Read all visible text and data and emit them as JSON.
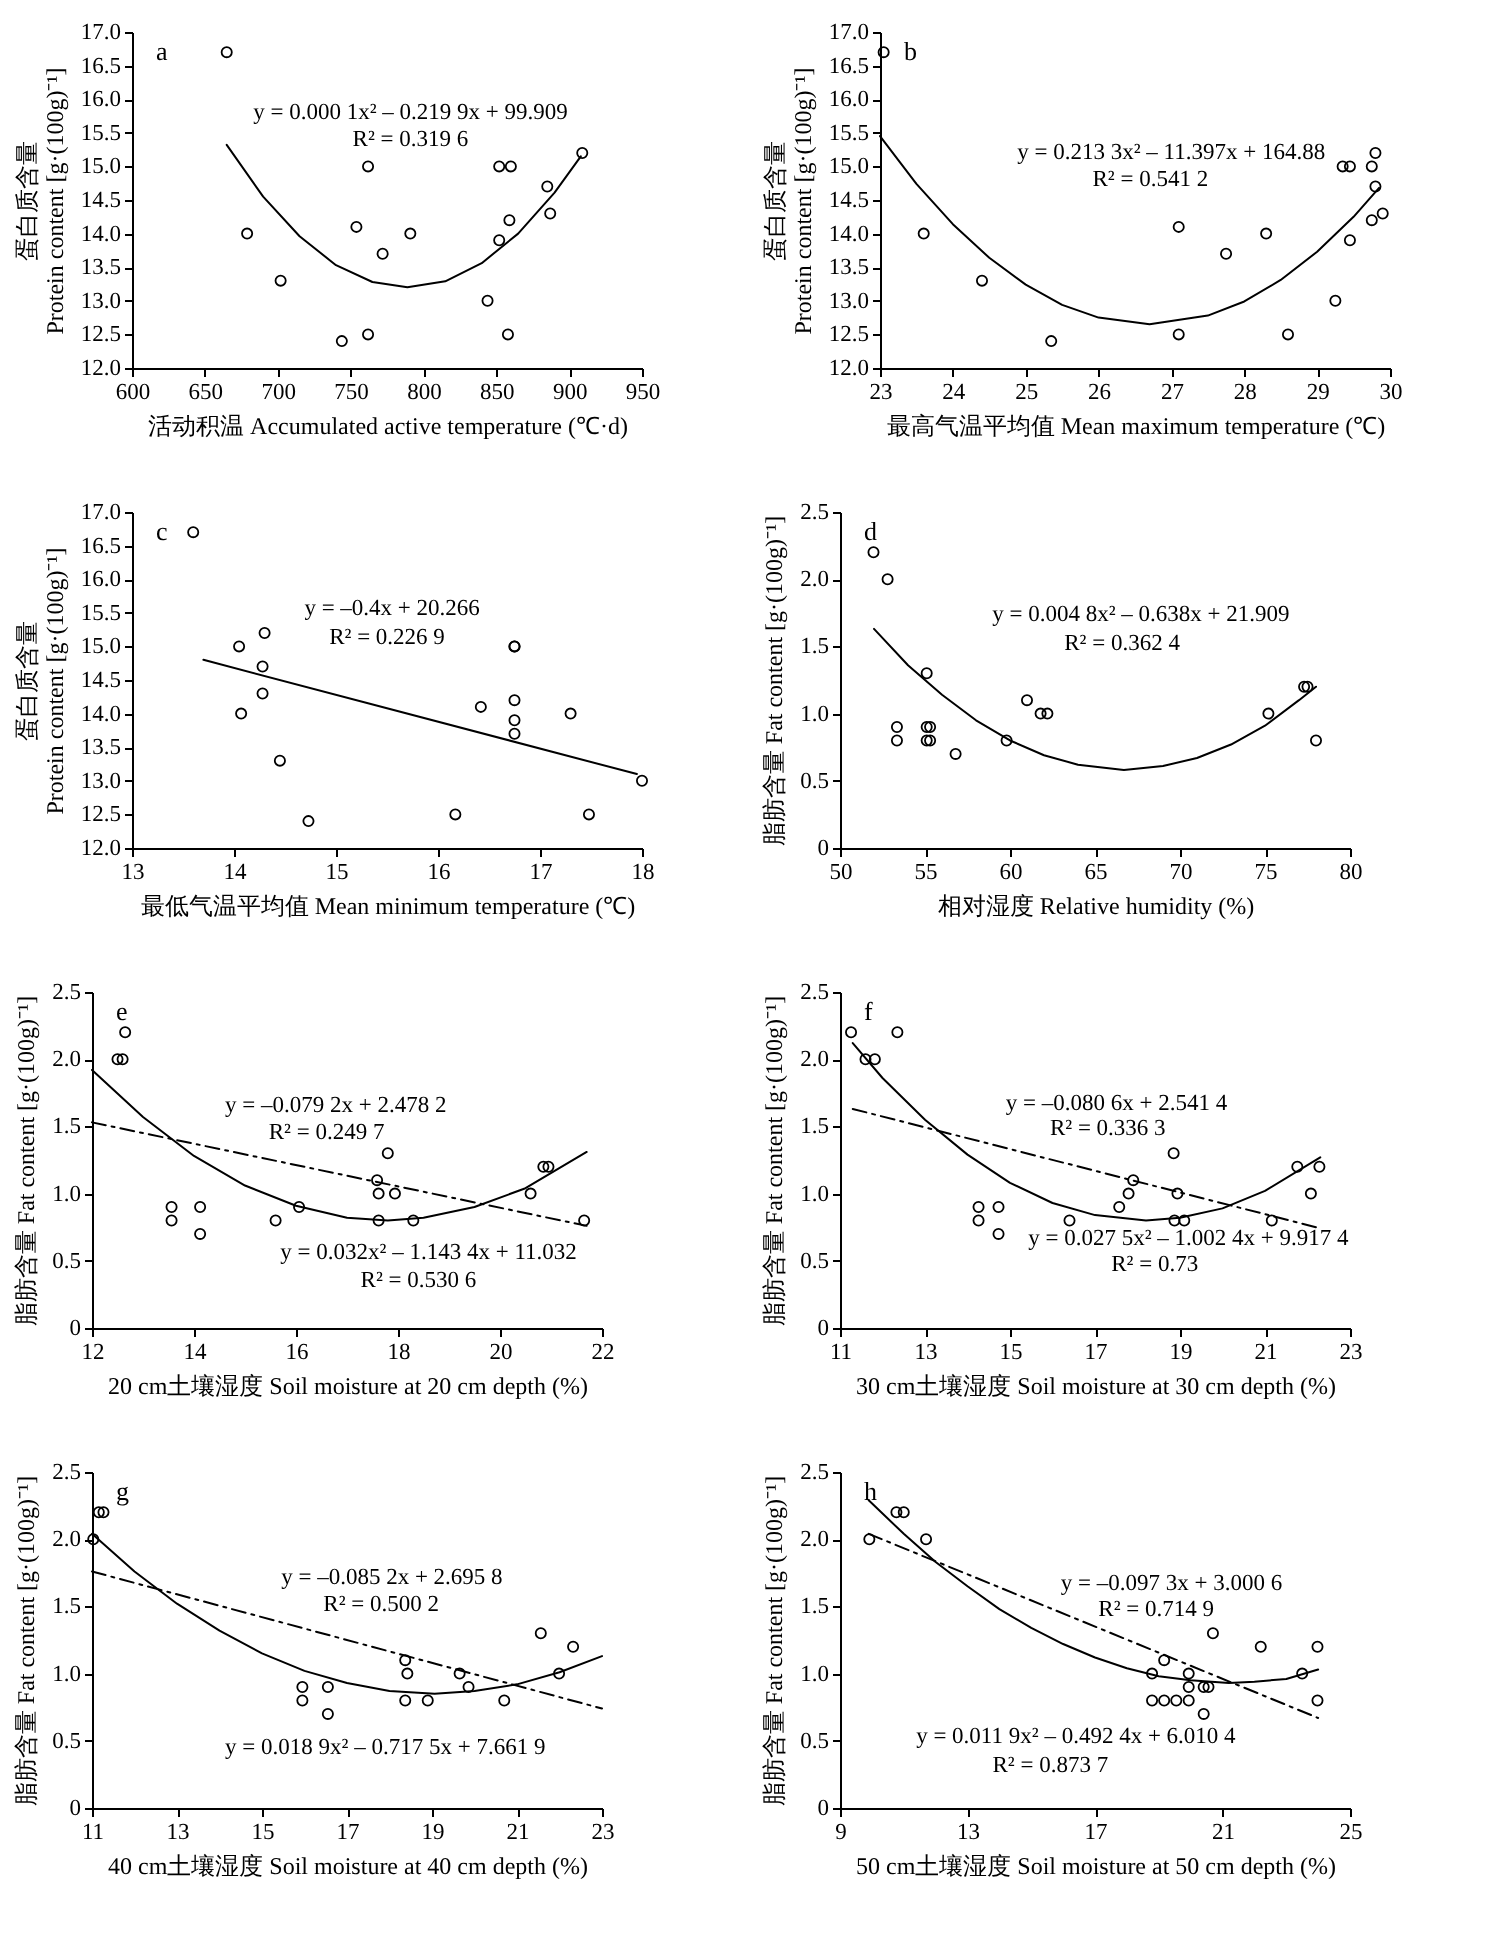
{
  "chart_data": [
    {
      "type": "scatter",
      "xlabel": "活动积温 Accumulated active temperature (℃·d)",
      "ylabel": "蛋白质含量\nProtein content [g·(100g)⁻¹]",
      "xlim": [
        600,
        950
      ],
      "xticks": [
        600,
        650,
        700,
        750,
        800,
        850,
        900,
        950
      ],
      "ylim": [
        12,
        17
      ],
      "yticks": [
        {
          "value": 12,
          "label": "12.0"
        },
        12.5,
        {
          "value": 13,
          "label": "13.0"
        },
        13.5,
        {
          "value": 14,
          "label": "14.0"
        },
        14.5,
        {
          "value": 15,
          "label": "15.0"
        },
        15.5,
        {
          "value": 16,
          "label": "16.0"
        },
        16.5,
        {
          "value": 17,
          "label": "17.0"
        }
      ],
      "series": [
        {
          "type": "scatter",
          "marker": "circle",
          "color": "#000000",
          "x": [
            665,
            679,
            702,
            744,
            754,
            762,
            762,
            772,
            791,
            844,
            852,
            860,
            852,
            859,
            858,
            885,
            887,
            909
          ],
          "values": [
            16.7,
            14.0,
            13.3,
            12.4,
            14.1,
            15.0,
            12.5,
            13.7,
            14.0,
            13.0,
            15.0,
            15.0,
            13.9,
            14.2,
            12.5,
            14.7,
            14.3,
            15.2
          ]
        },
        {
          "type": "line",
          "color": "#000000",
          "line_style": "solid",
          "x": [
            665,
            690,
            715,
            740,
            765,
            789,
            815,
            840,
            865,
            890,
            908
          ],
          "values": [
            15.32,
            14.55,
            13.96,
            13.53,
            13.28,
            13.2,
            13.29,
            13.56,
            14.0,
            14.61,
            15.15
          ]
        }
      ],
      "annotations": [
        "a",
        "y = 0.000 1x² – 0.219 9x + 99.909",
        "R² = 0.319 6"
      ]
    },
    {
      "type": "scatter",
      "xlabel": "最高气温平均值 Mean maximum temperature (℃)",
      "ylabel": "蛋白质含量\nProtein content [g·(100g)⁻¹]",
      "xlim": [
        23,
        30
      ],
      "xticks": [
        23,
        24,
        25,
        26,
        27,
        28,
        29,
        30
      ],
      "ylim": [
        12,
        17
      ],
      "yticks": [
        {
          "value": 12,
          "label": "12.0"
        },
        12.5,
        {
          "value": 13,
          "label": "13.0"
        },
        13.5,
        {
          "value": 14,
          "label": "14.0"
        },
        14.5,
        {
          "value": 15,
          "label": "15.0"
        },
        15.5,
        {
          "value": 16,
          "label": "16.0"
        },
        16.5,
        {
          "value": 17,
          "label": "17.0"
        }
      ],
      "series": [
        {
          "type": "scatter",
          "marker": "circle",
          "color": "#000000",
          "x": [
            23.05,
            23.6,
            24.4,
            25.35,
            27.1,
            27.1,
            27.75,
            28.3,
            28.6,
            29.25,
            29.35,
            29.45,
            29.45,
            29.75,
            29.8,
            29.8,
            29.75,
            29.9
          ],
          "values": [
            16.7,
            14.0,
            13.3,
            12.4,
            14.1,
            12.5,
            13.7,
            14.0,
            12.5,
            13.0,
            15.0,
            15.0,
            13.9,
            15.0,
            15.2,
            14.7,
            14.2,
            14.3
          ]
        },
        {
          "type": "line",
          "color": "#000000",
          "line_style": "solid",
          "x": [
            23,
            23.5,
            24,
            24.5,
            25,
            25.5,
            26,
            26.7,
            27.5,
            28,
            28.5,
            29,
            29.5,
            29.85
          ],
          "values": [
            15.45,
            14.74,
            14.14,
            13.64,
            13.24,
            12.94,
            12.75,
            12.65,
            12.78,
            12.99,
            13.31,
            13.73,
            14.25,
            14.68
          ]
        }
      ],
      "annotations": [
        "b",
        "y = 0.213 3x² – 11.397x + 164.88",
        "R² = 0.541 2"
      ]
    },
    {
      "type": "scatter",
      "xlabel": "最低气温平均值 Mean minimum temperature (℃)",
      "ylabel": "蛋白质含量\nProtein content [g·(100g)⁻¹]",
      "xlim": [
        13,
        18
      ],
      "xticks": [
        13,
        14,
        15,
        16,
        17,
        18
      ],
      "ylim": [
        12,
        17
      ],
      "yticks": [
        {
          "value": 12,
          "label": "12.0"
        },
        12.5,
        {
          "value": 13,
          "label": "13.0"
        },
        13.5,
        {
          "value": 14,
          "label": "14.0"
        },
        14.5,
        {
          "value": 15,
          "label": "15.0"
        },
        15.5,
        {
          "value": 16,
          "label": "16.0"
        },
        16.5,
        {
          "value": 17,
          "label": "17.0"
        }
      ],
      "series": [
        {
          "type": "scatter",
          "marker": "circle",
          "color": "#000000",
          "x": [
            13.6,
            14.05,
            14.3,
            14.28,
            14.28,
            14.07,
            14.45,
            14.73,
            16.17,
            16.42,
            16.75,
            16.75,
            16.75,
            16.75,
            16.75,
            17.3,
            17.48,
            18.0
          ],
          "values": [
            16.7,
            15.0,
            15.2,
            14.7,
            14.3,
            14.0,
            13.3,
            12.4,
            12.5,
            14.1,
            15.0,
            15.0,
            14.2,
            13.9,
            13.7,
            14.0,
            12.5,
            13.0
          ]
        },
        {
          "type": "line",
          "color": "#000000",
          "line_style": "solid",
          "x": [
            13.7,
            17.95
          ],
          "values": [
            14.8,
            13.1
          ]
        }
      ],
      "annotations": [
        "c",
        "y = –0.4x + 20.266",
        "R² = 0.226 9"
      ]
    },
    {
      "type": "scatter",
      "xlabel": "相对湿度 Relative humidity (%)",
      "ylabel": "脂肪含量 Fat content [g·(100g)⁻¹]",
      "xlim": [
        50,
        80
      ],
      "xticks": [
        50,
        55,
        60,
        65,
        70,
        75,
        80
      ],
      "ylim": [
        0,
        2.5
      ],
      "yticks": [
        0,
        0.5,
        {
          "value": 1,
          "label": "1.0"
        },
        1.5,
        {
          "value": 2,
          "label": "2.0"
        },
        2.5
      ],
      "series": [
        {
          "type": "scatter",
          "marker": "circle",
          "color": "#000000",
          "x": [
            51.97,
            52.8,
            53.35,
            53.35,
            55.1,
            55.1,
            55.3,
            55.1,
            55.3,
            56.8,
            59.8,
            61.0,
            61.8,
            62.2,
            75.2,
            77.3,
            77.5,
            78.0
          ],
          "values": [
            2.2,
            2.0,
            0.9,
            0.8,
            1.3,
            0.9,
            0.9,
            0.8,
            0.8,
            0.7,
            0.8,
            1.1,
            1.0,
            1.0,
            1.0,
            1.2,
            1.2,
            0.8
          ]
        },
        {
          "type": "line",
          "color": "#000000",
          "line_style": "solid",
          "x": [
            52,
            54,
            56,
            58,
            60,
            62,
            64,
            66.7,
            69,
            71,
            73,
            75,
            77,
            78
          ],
          "values": [
            1.63,
            1.36,
            1.14,
            0.95,
            0.8,
            0.69,
            0.62,
            0.58,
            0.61,
            0.67,
            0.77,
            0.91,
            1.1,
            1.2
          ]
        }
      ],
      "annotations": [
        "d",
        "y = 0.004 8x² – 0.638x + 21.909",
        "R² = 0.362 4"
      ]
    },
    {
      "type": "scatter",
      "xlabel": "20 cm土壤湿度 Soil moisture at 20 cm depth (%)",
      "ylabel": "脂肪含量 Fat content [g·(100g)⁻¹]",
      "xlim": [
        12,
        22
      ],
      "xticks": [
        12,
        14,
        16,
        18,
        20,
        22
      ],
      "ylim": [
        0,
        2.5
      ],
      "yticks": [
        0,
        0.5,
        {
          "value": 1,
          "label": "1.0"
        },
        1.5,
        {
          "value": 2,
          "label": "2.0"
        },
        2.5
      ],
      "series": [
        {
          "type": "scatter",
          "marker": "circle",
          "color": "#000000",
          "x": [
            12.5,
            12.6,
            12.65,
            13.56,
            13.56,
            14.12,
            14.12,
            15.6,
            16.06,
            17.59,
            17.62,
            17.62,
            17.8,
            17.94,
            18.3,
            20.6,
            20.85,
            20.95,
            21.65
          ],
          "values": [
            2.0,
            2.0,
            2.2,
            0.9,
            0.8,
            0.9,
            0.7,
            0.8,
            0.9,
            1.1,
            1.0,
            0.8,
            1.3,
            1.0,
            0.8,
            1.0,
            1.2,
            1.2,
            0.8
          ]
        },
        {
          "type": "line",
          "color": "#000000",
          "line_style": "solid",
          "x": [
            12,
            13,
            14,
            15,
            16,
            17,
            17.8,
            18.5,
            19.5,
            20.5,
            21.7
          ],
          "values": [
            1.92,
            1.57,
            1.28,
            1.06,
            0.91,
            0.82,
            0.8,
            0.82,
            0.9,
            1.04,
            1.31
          ]
        },
        {
          "type": "line",
          "color": "#000000",
          "line_style": "dashed",
          "x": [
            12,
            21.7
          ],
          "values": [
            1.53,
            0.76
          ]
        }
      ],
      "annotations": [
        "e",
        "y = –0.079 2x + 2.478 2",
        "R² = 0.249 7",
        "y = 0.032x² – 1.143 4x + 11.032",
        "R² = 0.530 6"
      ]
    },
    {
      "type": "scatter",
      "xlabel": "30 cm土壤湿度 Soil moisture at 30 cm depth (%)",
      "ylabel": "脂肪含量 Fat content [g·(100g)⁻¹]",
      "xlim": [
        11,
        23
      ],
      "xticks": [
        11,
        13,
        15,
        17,
        19,
        21,
        23
      ],
      "ylim": [
        0,
        2.5
      ],
      "yticks": [
        0,
        0.5,
        {
          "value": 1,
          "label": "1.0"
        },
        1.5,
        {
          "value": 2,
          "label": "2.0"
        },
        2.5
      ],
      "series": [
        {
          "type": "scatter",
          "marker": "circle",
          "color": "#000000",
          "x": [
            11.26,
            11.6,
            11.82,
            12.35,
            14.26,
            14.26,
            14.73,
            14.73,
            16.4,
            17.57,
            17.79,
            17.9,
            18.85,
            18.94,
            18.87,
            19.1,
            21.16,
            21.76,
            22.08,
            22.28
          ],
          "values": [
            2.2,
            2.0,
            2.0,
            2.2,
            0.9,
            0.8,
            0.9,
            0.7,
            0.8,
            0.9,
            1.0,
            1.1,
            1.3,
            1.0,
            0.8,
            0.8,
            0.8,
            1.2,
            1.0,
            1.2
          ]
        },
        {
          "type": "line",
          "color": "#000000",
          "line_style": "solid",
          "x": [
            11.3,
            12,
            13,
            14,
            15,
            16,
            17,
            18.2,
            19,
            20,
            21,
            22.3
          ],
          "values": [
            2.12,
            1.86,
            1.55,
            1.29,
            1.08,
            0.93,
            0.84,
            0.8,
            0.82,
            0.89,
            1.02,
            1.27
          ]
        },
        {
          "type": "line",
          "color": "#000000",
          "line_style": "dashed",
          "x": [
            11.3,
            22.2
          ],
          "values": [
            1.63,
            0.75
          ]
        }
      ],
      "annotations": [
        "f",
        "y = –0.080 6x + 2.541 4",
        "R² = 0.336 3",
        "y = 0.027 5x² – 1.002 4x + 9.917 4",
        "R² = 0.73"
      ]
    },
    {
      "type": "scatter",
      "xlabel": "40 cm土壤湿度 Soil moisture at 40 cm depth (%)",
      "ylabel": "脂肪含量 Fat content [g·(100g)⁻¹]",
      "xlim": [
        11,
        23
      ],
      "xticks": [
        11,
        13,
        15,
        17,
        19,
        21,
        23
      ],
      "ylim": [
        0,
        2.5
      ],
      "yticks": [
        0,
        0.5,
        {
          "value": 1,
          "label": "1.0"
        },
        1.5,
        {
          "value": 2,
          "label": "2.0"
        },
        2.5
      ],
      "series": [
        {
          "type": "scatter",
          "marker": "circle",
          "color": "#000000",
          "x": [
            11.03,
            11.16,
            11.27,
            15.95,
            15.95,
            16.55,
            16.55,
            18.37,
            18.42,
            18.37,
            18.9,
            19.65,
            19.86,
            20.7,
            21.56,
            21.99,
            22.32
          ],
          "values": [
            2.0,
            2.2,
            2.2,
            0.9,
            0.8,
            0.9,
            0.7,
            1.1,
            1.0,
            0.8,
            0.8,
            1.0,
            0.9,
            0.8,
            1.3,
            1.0,
            1.2
          ]
        },
        {
          "type": "line",
          "color": "#000000",
          "line_style": "solid",
          "x": [
            11,
            12,
            13,
            14,
            15,
            16,
            17,
            18,
            19.06,
            20,
            21,
            22,
            23
          ],
          "values": [
            2.04,
            1.76,
            1.52,
            1.32,
            1.15,
            1.02,
            0.93,
            0.87,
            0.85,
            0.87,
            0.92,
            1.01,
            1.13
          ]
        },
        {
          "type": "line",
          "color": "#000000",
          "line_style": "dashed",
          "x": [
            11,
            23
          ],
          "values": [
            1.76,
            0.74
          ]
        }
      ],
      "annotations": [
        "g",
        "y = –0.085 2x + 2.695 8",
        "R² = 0.500 2",
        "y = 0.018 9x² – 0.717 5x + 7.661 9"
      ]
    },
    {
      "type": "scatter",
      "xlabel": "50 cm土壤湿度 Soil moisture at 50 cm depth (%)",
      "ylabel": "脂肪含量 Fat content [g·(100g)⁻¹]",
      "xlim": [
        9,
        25
      ],
      "xticks": [
        9,
        13,
        17,
        21,
        25
      ],
      "ylim": [
        0,
        2.5
      ],
      "yticks": [
        0,
        0.5,
        {
          "value": 1,
          "label": "1.0"
        },
        1.5,
        {
          "value": 2,
          "label": "2.0"
        },
        2.5
      ],
      "series": [
        {
          "type": "scatter",
          "marker": "circle",
          "color": "#000000",
          "x": [
            9.92,
            10.77,
            11.0,
            11.7,
            18.79,
            18.79,
            19.17,
            19.17,
            19.55,
            19.94,
            19.94,
            19.94,
            20.41,
            20.56,
            20.41,
            20.7,
            22.2,
            23.5,
            23.98,
            23.98
          ],
          "values": [
            2.0,
            2.2,
            2.2,
            2.0,
            1.0,
            0.8,
            1.1,
            0.8,
            0.8,
            1.0,
            0.9,
            0.8,
            0.9,
            0.9,
            0.7,
            1.3,
            1.2,
            1.0,
            1.2,
            0.8
          ]
        },
        {
          "type": "line",
          "color": "#000000",
          "line_style": "solid",
          "x": [
            9.9,
            11,
            12,
            13,
            14,
            15,
            16,
            17,
            18,
            19,
            20,
            21.2,
            22,
            23,
            24
          ],
          "values": [
            2.29,
            2.04,
            1.83,
            1.65,
            1.48,
            1.34,
            1.22,
            1.12,
            1.04,
            0.98,
            0.95,
            0.93,
            0.94,
            0.96,
            1.03
          ]
        },
        {
          "type": "line",
          "color": "#000000",
          "line_style": "dashed",
          "x": [
            9.9,
            24
          ],
          "values": [
            2.04,
            0.67
          ]
        }
      ],
      "annotations": [
        "h",
        "y = –0.097 3x + 3.000 6",
        "R² = 0.714 9",
        "y = 0.011 9x² – 0.492 4x + 6.010 4",
        "R² = 0.873 7"
      ]
    }
  ]
}
